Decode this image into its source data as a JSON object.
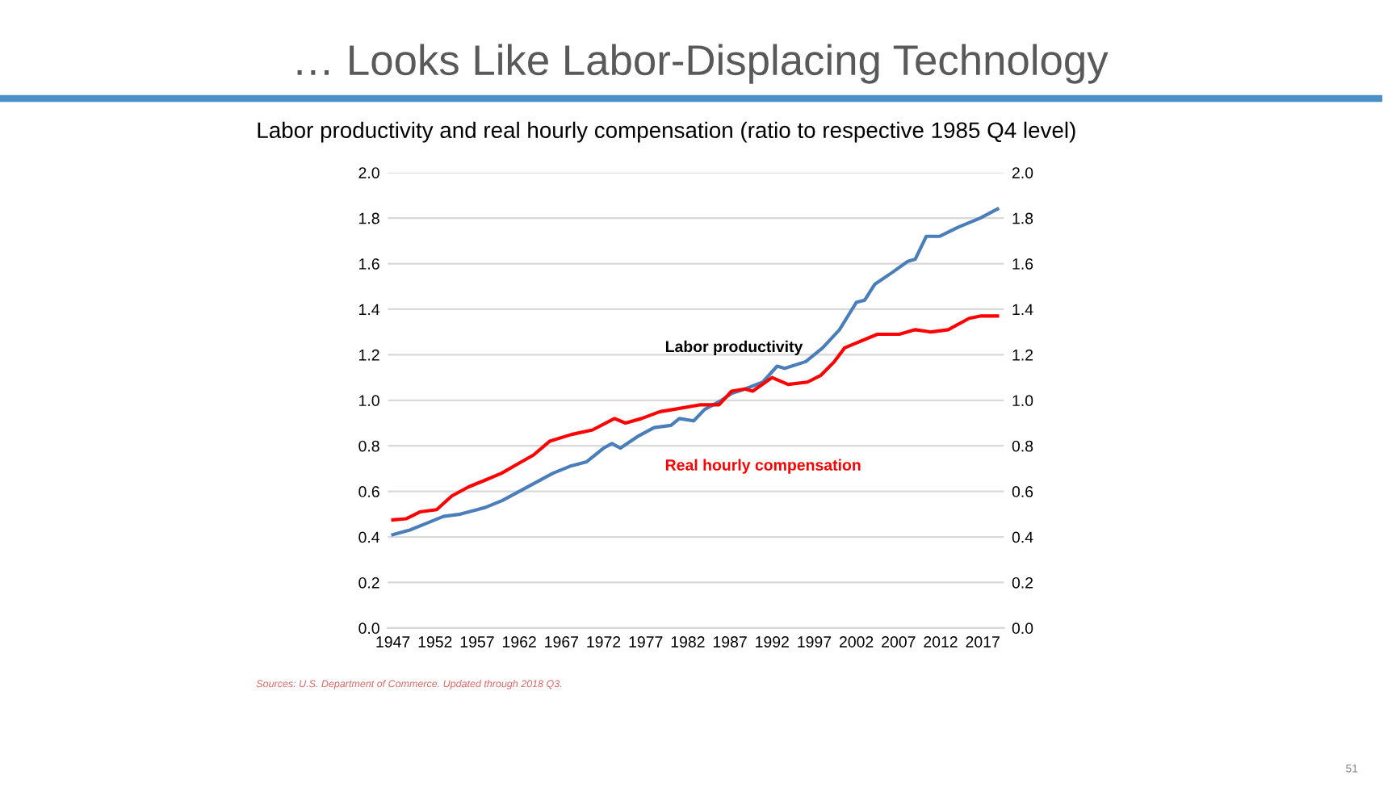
{
  "chart_data": {
    "type": "line",
    "title": "… Looks Like Labor-Displacing Technology",
    "subtitle": "Labor productivity and real hourly compensation (ratio to respective 1985 Q4 level)",
    "annotations": [
      "Sources: U.S. Department of Commerce. Updated through 2018 Q3.",
      "51"
    ],
    "series": [
      {
        "name": "Labor productivity",
        "color": "#4a7ebb",
        "x": [
          1947,
          1949,
          1951,
          1953,
          1955,
          1957,
          1958,
          1960,
          1962,
          1964,
          1966,
          1968,
          1970,
          1972,
          1973,
          1974,
          1976,
          1978,
          1980,
          1981,
          1982.7,
          1984,
          1986,
          1987.2,
          1988.8,
          1990.9,
          1992.6,
          1993.5,
          1996,
          1998,
          2000,
          2002,
          2003,
          2004.2,
          2006.2,
          2008.1,
          2009,
          2010.3,
          2011.9,
          2014.1,
          2016.7,
          2018.75
        ],
        "values": [
          0.41,
          0.43,
          0.46,
          0.49,
          0.5,
          0.52,
          0.53,
          0.56,
          0.6,
          0.64,
          0.68,
          0.71,
          0.73,
          0.79,
          0.81,
          0.79,
          0.84,
          0.88,
          0.89,
          0.92,
          0.91,
          0.96,
          1.0,
          1.03,
          1.05,
          1.08,
          1.15,
          1.14,
          1.17,
          1.23,
          1.31,
          1.43,
          1.44,
          1.51,
          1.56,
          1.61,
          1.62,
          1.72,
          1.72,
          1.76,
          1.8,
          1.84
        ]
      },
      {
        "name": "Real hourly compensation",
        "color": "#ff0000",
        "x": [
          1947,
          1948.6,
          1950.2,
          1952.2,
          1954,
          1956,
          1958,
          1959.9,
          1961.8,
          1963.7,
          1965.6,
          1968.2,
          1970.7,
          1973.3,
          1974.6,
          1976.5,
          1978.7,
          1980.3,
          1983.4,
          1985.7,
          1987.2,
          1988.8,
          1989.7,
          1992,
          1993.9,
          1996.2,
          1997.8,
          1999.4,
          2000.6,
          2004.5,
          2007.1,
          2009,
          2010.9,
          2012.9,
          2015.4,
          2016.7,
          2018.75
        ],
        "values": [
          0.475,
          0.48,
          0.51,
          0.52,
          0.58,
          0.62,
          0.65,
          0.68,
          0.72,
          0.76,
          0.82,
          0.85,
          0.87,
          0.92,
          0.9,
          0.92,
          0.95,
          0.96,
          0.98,
          0.98,
          1.04,
          1.05,
          1.04,
          1.1,
          1.07,
          1.08,
          1.11,
          1.17,
          1.23,
          1.29,
          1.29,
          1.31,
          1.3,
          1.31,
          1.36,
          1.37,
          1.37
        ]
      }
    ],
    "xlim": [
      1946.4,
      2019.5
    ],
    "xticks": [
      1947,
      1952,
      1957,
      1962,
      1967,
      1972,
      1977,
      1982,
      1987,
      1992,
      1997,
      2002,
      2007,
      2012,
      2017
    ],
    "ylim": [
      0,
      2
    ],
    "yticks": [
      {
        "value": 0,
        "label": "0.0"
      },
      {
        "value": 0.2,
        "label": "0.2"
      },
      {
        "value": 0.4,
        "label": "0.4"
      },
      {
        "value": 0.6,
        "label": "0.6"
      },
      {
        "value": 0.8,
        "label": "0.8"
      },
      {
        "value": 1.0,
        "label": "1.0"
      },
      {
        "value": 1.2,
        "label": "1.2"
      },
      {
        "value": 1.4,
        "label": "1.4"
      },
      {
        "value": 1.6,
        "label": "1.6"
      },
      {
        "value": 1.8,
        "label": "1.8"
      },
      {
        "value": 2.0,
        "label": "2.0"
      }
    ],
    "y2lim": [
      0,
      2
    ],
    "y2ticks": [
      {
        "value": 0,
        "label": "0.0"
      },
      {
        "value": 0.2,
        "label": "0.2"
      },
      {
        "value": 0.4,
        "label": "0.4"
      },
      {
        "value": 0.6,
        "label": "0.6"
      },
      {
        "value": 0.8,
        "label": "0.8"
      },
      {
        "value": 1.0,
        "label": "1.0"
      },
      {
        "value": 1.2,
        "label": "1.2"
      },
      {
        "value": 1.4,
        "label": "1.4"
      },
      {
        "value": 1.6,
        "label": "1.6"
      },
      {
        "value": 1.8,
        "label": "1.8"
      },
      {
        "value": 2.0,
        "label": "2.0"
      }
    ],
    "grid": "y",
    "legend": false,
    "marker": "none",
    "line_style": "solid"
  }
}
